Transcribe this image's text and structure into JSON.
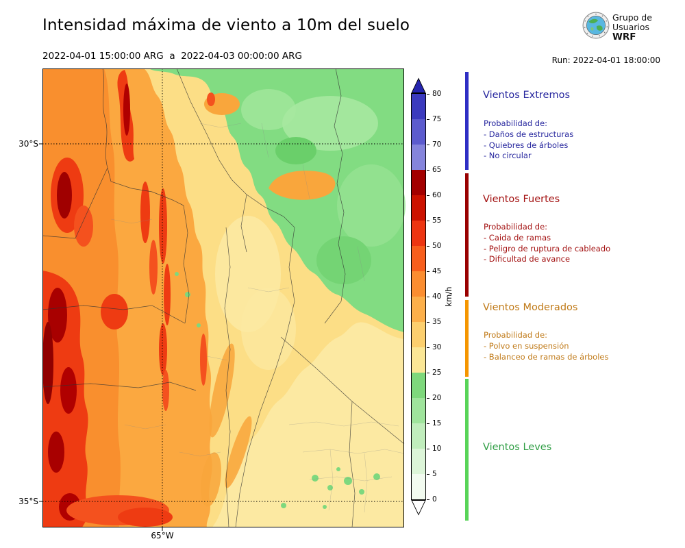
{
  "header": {
    "title": "Intensidad máxima de viento a 10m del suelo",
    "date_range": "2022-04-01 15:00:00 ARG  a  2022-04-03 00:00:00 ARG",
    "run_label": "Run: 2022-04-01 18:00:00",
    "logo": {
      "line1": "Grupo de",
      "line2": "Usuarios",
      "line3": "WRF"
    }
  },
  "map": {
    "lat_labels": [
      "30°S",
      "35°S"
    ],
    "lon_labels": [
      "65°W"
    ]
  },
  "colorbar": {
    "unit": "km/h",
    "ticks": [
      "0",
      "5",
      "10",
      "15",
      "20",
      "25",
      "30",
      "35",
      "40",
      "45",
      "50",
      "55",
      "60",
      "65",
      "70",
      "75",
      "80"
    ],
    "segment_colors": [
      "#F2FBF0",
      "#DCF5D8",
      "#C0EDBC",
      "#9FE49C",
      "#7ED87C",
      "#FBE796",
      "#FCCF6E",
      "#FCAF4A",
      "#FB8D30",
      "#F85E1C",
      "#ED3511",
      "#CC1200",
      "#A30000",
      "#8584DC",
      "#5C5BCE",
      "#3B3ABE"
    ],
    "over_color": "#2524AE",
    "under_color": "#FFFFFF"
  },
  "legend": {
    "sections": [
      {
        "name": "Vientos Extremos",
        "text_color": "#26269E",
        "bar_color": "#2E2EC4",
        "prob_label": "Probabilidad de:",
        "items": [
          "- Daños de estructuras",
          "- Quiebres de árboles",
          "- No circular"
        ]
      },
      {
        "name": "Vientos Fuertes",
        "text_color": "#A31111",
        "bar_color": "#990000",
        "prob_label": "Probabilidad de:",
        "items": [
          "- Caida de ramas",
          "- Peligro de ruptura de cableado",
          "- Dificultad de avance"
        ]
      },
      {
        "name": "Vientos Moderados",
        "text_color": "#C07A18",
        "bar_color": "#F59600",
        "prob_label": "Probabilidad de:",
        "items": [
          "- Polvo en suspensión",
          "- Balanceo de ramas de árboles"
        ]
      },
      {
        "name": "Vientos Leves",
        "text_color": "#2F9E44",
        "bar_color": "#58D458",
        "prob_label": "",
        "items": []
      }
    ]
  },
  "chart_data": {
    "type": "heatmap",
    "title": "Intensidad máxima de viento a 10m del suelo",
    "period_start": "2022-04-01 15:00:00 ARG",
    "period_end": "2022-04-03 00:00:00 ARG",
    "model_run": "Run: 2022-04-01 18:00:00",
    "unit": "km/h",
    "scale_min": 0,
    "scale_max": 80,
    "scale_step": 5,
    "lat_gridlines": [
      "30°S",
      "35°S"
    ],
    "lon_gridlines": [
      "65°W"
    ],
    "categories": [
      {
        "label": "Vientos Leves",
        "approx_range_kmh": [
          0,
          25
        ]
      },
      {
        "label": "Vientos Moderados",
        "approx_range_kmh": [
          25,
          40
        ]
      },
      {
        "label": "Vientos Fuertes",
        "approx_range_kmh": [
          40,
          65
        ]
      },
      {
        "label": "Vientos Extremos",
        "approx_range_kmh": [
          65,
          80
        ]
      }
    ],
    "spatial_pattern": "Máximos (45-65+ km/h, rojos) sobre el oeste cordillerano; vientos moderados (25-45 km/h, naranjas/amarillos) en el centro y sur; vientos leves (0-25 km/h, verdes) hacia el noreste"
  }
}
